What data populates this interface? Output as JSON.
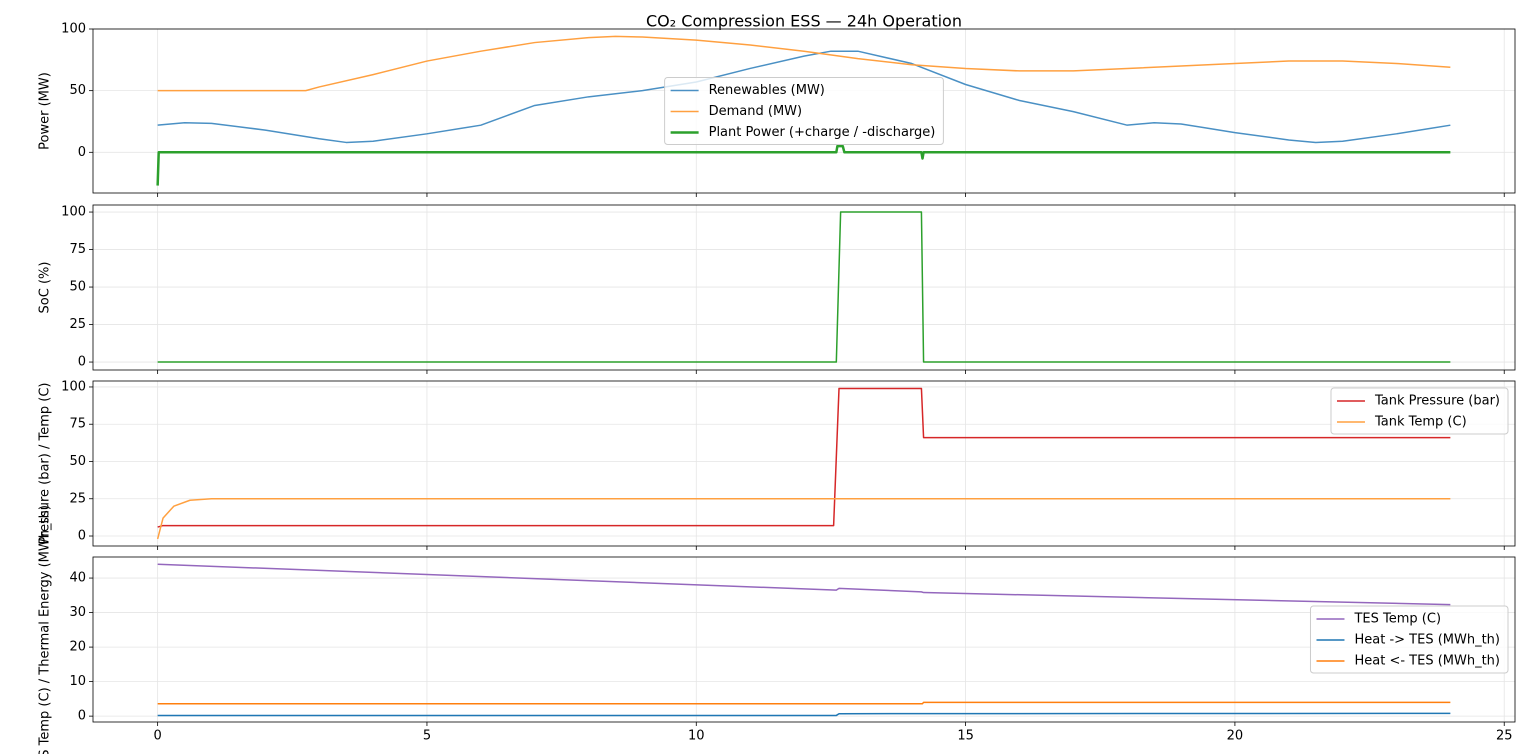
{
  "chart_data": [
    {
      "type": "line",
      "title": "CO₂ Compression ESS — 24h Operation",
      "ylabel": "Power (MW)",
      "xlim": [
        -1.2,
        25.2
      ],
      "xticks": [
        0,
        5,
        10,
        15,
        20,
        25
      ],
      "show_xtick_labels": false,
      "ylim": [
        -33,
        100
      ],
      "yticks": [
        0,
        50,
        100
      ],
      "grid": true,
      "legend": "center",
      "series": [
        {
          "name": "Renewables (MW)",
          "color": "#4a90c4",
          "width": 1.5,
          "x": [
            0,
            0.5,
            1,
            2,
            3,
            3.5,
            4,
            5,
            6,
            6.5,
            7,
            8,
            9,
            10,
            11,
            12,
            12.5,
            13,
            14,
            15,
            16,
            17,
            18,
            18.5,
            19,
            20,
            21,
            21.5,
            22,
            23,
            24
          ],
          "values": [
            22,
            24,
            23.5,
            18,
            11,
            8,
            9,
            15,
            22,
            30,
            38,
            45,
            50,
            57,
            68,
            78,
            82,
            82,
            72,
            55,
            42,
            33,
            22,
            24,
            23,
            16,
            10,
            8,
            9,
            15,
            22
          ]
        },
        {
          "name": "Demand (MW)",
          "color": "#ffa040",
          "width": 1.5,
          "x": [
            0,
            2.75,
            3,
            4,
            5,
            6,
            7,
            8,
            8.5,
            9,
            10,
            11,
            12,
            13,
            14,
            15,
            16,
            17,
            18,
            19,
            20,
            21,
            22,
            23,
            24
          ],
          "values": [
            50,
            50,
            53,
            63,
            74,
            82,
            89,
            93,
            94,
            93.5,
            91,
            87,
            82,
            76,
            71,
            68,
            66,
            66,
            68,
            70,
            72,
            74,
            74,
            72,
            69
          ]
        },
        {
          "name": "Plant Power (+charge / -discharge)",
          "color": "#2ca02c",
          "width": 2.5,
          "x": [
            0,
            0.02,
            12.6,
            12.62,
            12.72,
            12.75,
            14.18,
            14.2,
            14.22,
            24
          ],
          "values": [
            -27,
            0,
            0,
            5,
            5,
            0,
            0,
            -5,
            0,
            0
          ]
        }
      ]
    },
    {
      "type": "line",
      "ylabel": "SoC (%)",
      "xlim": [
        -1.2,
        25.2
      ],
      "xticks": [
        0,
        5,
        10,
        15,
        20,
        25
      ],
      "show_xtick_labels": false,
      "ylim": [
        -5.3,
        104.7
      ],
      "yticks": [
        0,
        25,
        50,
        75,
        100
      ],
      "grid": true,
      "series": [
        {
          "color": "#2ca02c",
          "width": 1.5,
          "x": [
            0,
            12.6,
            12.68,
            14.18,
            14.22,
            24
          ],
          "values": [
            0,
            0,
            100,
            100,
            0,
            0
          ]
        }
      ]
    },
    {
      "type": "line",
      "ylabel": "Pressure (bar) / Temp (C)",
      "xlim": [
        -1.2,
        25.2
      ],
      "xticks": [
        0,
        5,
        10,
        15,
        20,
        25
      ],
      "show_xtick_labels": false,
      "ylim": [
        -6.7,
        104
      ],
      "yticks": [
        0,
        25,
        50,
        75,
        100
      ],
      "grid": true,
      "legend": "upper right",
      "series": [
        {
          "name": "Tank Pressure (bar)",
          "color": "#d62728",
          "width": 1.5,
          "x": [
            0,
            0.1,
            12.55,
            12.65,
            14.18,
            14.22,
            24
          ],
          "values": [
            6,
            7,
            7,
            99,
            99,
            66,
            66
          ]
        },
        {
          "name": "Tank Temp (C)",
          "color": "#ffa040",
          "width": 1.5,
          "x": [
            0,
            0.1,
            0.3,
            0.6,
            1,
            1.5,
            24
          ],
          "values": [
            -2,
            12,
            20,
            24,
            25,
            25,
            25
          ]
        }
      ]
    },
    {
      "type": "line",
      "ylabel": "TES Temp (C) / Thermal Energy (MWh_th)",
      "xlim": [
        -1.2,
        25.2
      ],
      "xticks": [
        0,
        5,
        10,
        15,
        20,
        25
      ],
      "show_xtick_labels": true,
      "ylim": [
        -1.7,
        46.1
      ],
      "yticks": [
        0,
        10,
        20,
        30,
        40
      ],
      "grid": true,
      "legend": "center right",
      "series": [
        {
          "name": "TES Temp (C)",
          "color": "#9467bd",
          "width": 1.5,
          "x": [
            0,
            12.6,
            12.65,
            14.18,
            14.22,
            24
          ],
          "values": [
            44,
            36.5,
            37,
            36,
            35.8,
            32.3
          ]
        },
        {
          "name": "Heat -> TES (MWh_th)",
          "color": "#1f77b4",
          "width": 1.5,
          "x": [
            0,
            12.6,
            12.65,
            24
          ],
          "values": [
            0.2,
            0.2,
            0.7,
            0.8
          ]
        },
        {
          "name": "Heat <- TES (MWh_th)",
          "color": "#ff7f0e",
          "width": 1.5,
          "x": [
            0,
            14.2,
            14.22,
            24
          ],
          "values": [
            3.6,
            3.6,
            4.0,
            4.0
          ]
        }
      ]
    }
  ]
}
